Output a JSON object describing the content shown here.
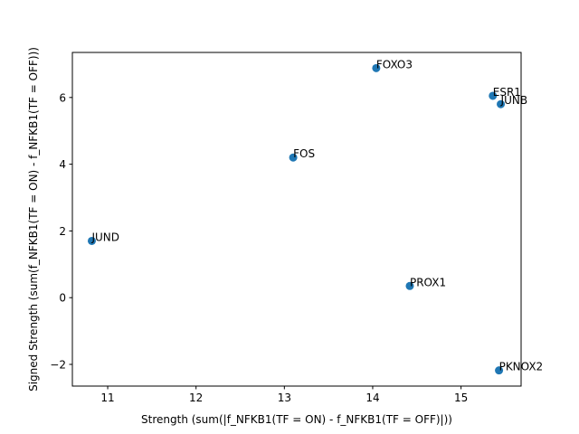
{
  "chart_data": {
    "type": "scatter",
    "xlabel": "Strength (sum(|f_NFKB1(TF = ON) - f_NFKB1(TF = OFF)|))",
    "ylabel": "Signed Strength (sum(f_NFKB1(TF = ON) - f_NFKB1(TF = OFF)))",
    "xlim": [
      10.6,
      15.68
    ],
    "ylim": [
      -2.65,
      7.35
    ],
    "xticks": [
      11,
      12,
      13,
      14,
      15
    ],
    "yticks": [
      -2,
      0,
      2,
      4,
      6
    ],
    "grid": false,
    "marker_color": "#1f77b4",
    "points": [
      {
        "label": "JUND",
        "x": 10.82,
        "y": 1.7
      },
      {
        "label": "FOS",
        "x": 13.1,
        "y": 4.2
      },
      {
        "label": "FOXO3",
        "x": 14.04,
        "y": 6.88
      },
      {
        "label": "PROX1",
        "x": 14.42,
        "y": 0.35
      },
      {
        "label": "ESR1",
        "x": 15.36,
        "y": 6.05
      },
      {
        "label": "JUNB",
        "x": 15.45,
        "y": 5.8
      },
      {
        "label": "PKNOX2",
        "x": 15.43,
        "y": -2.18
      }
    ]
  }
}
